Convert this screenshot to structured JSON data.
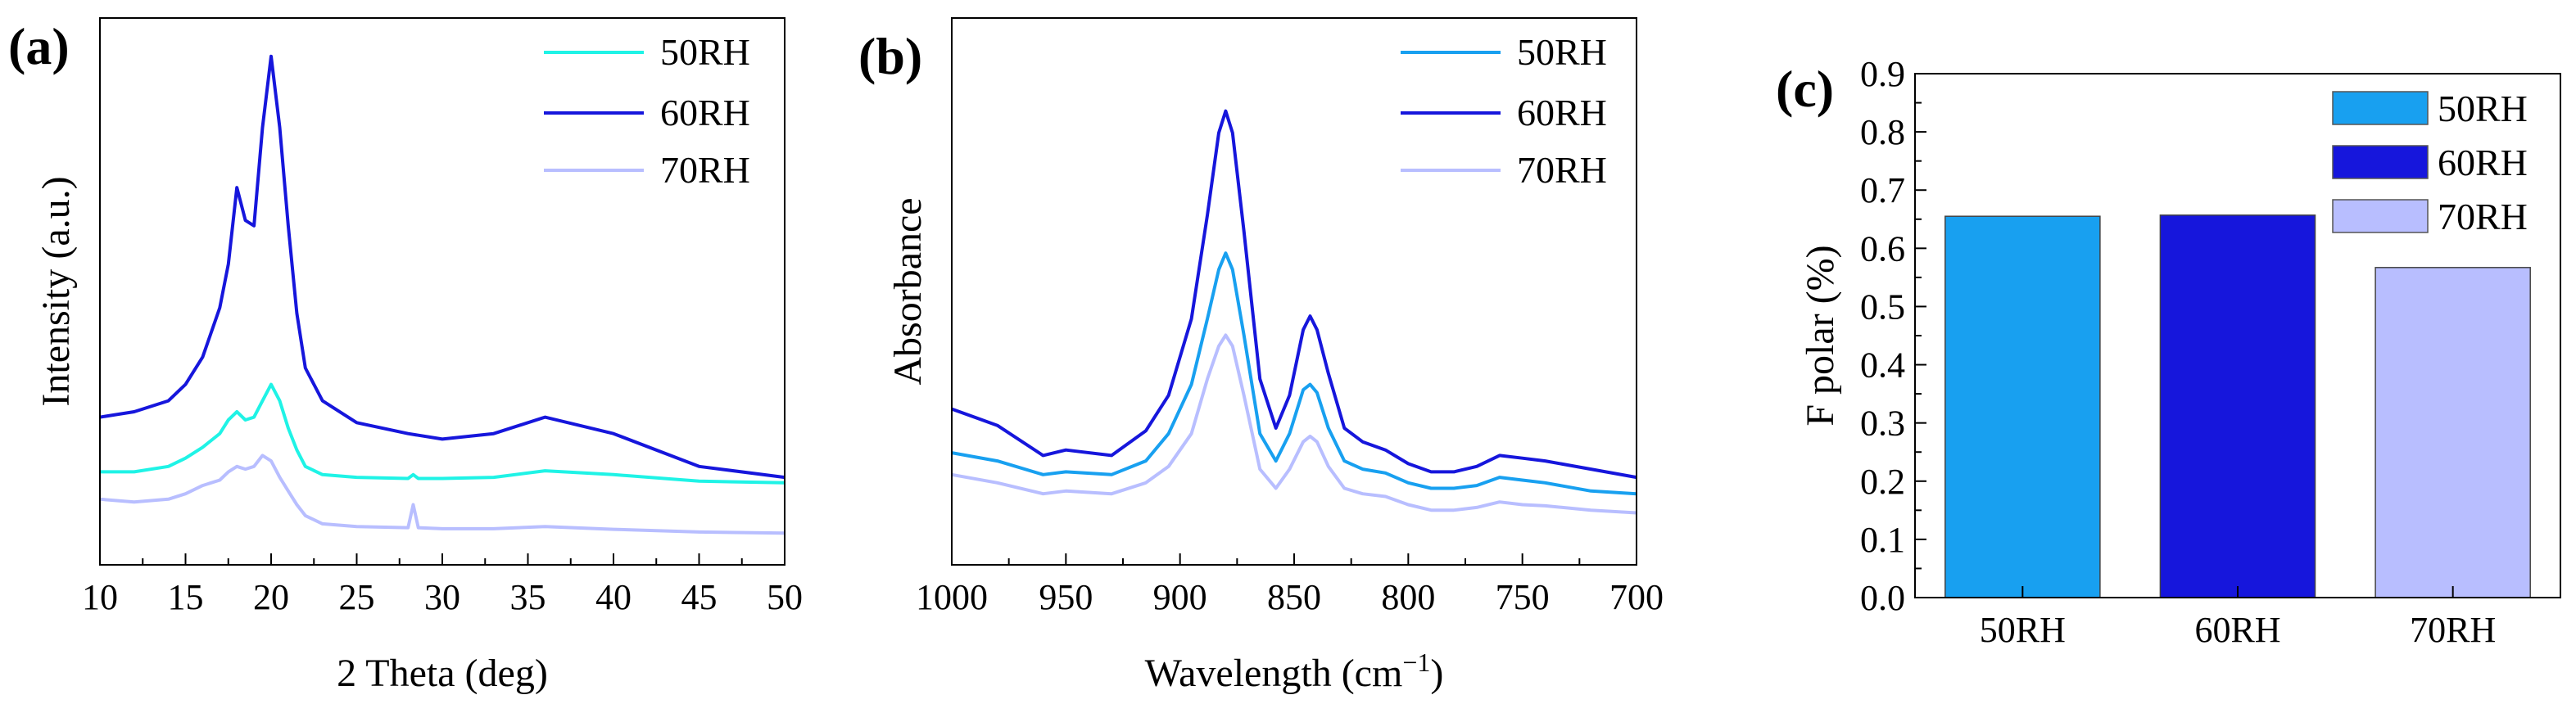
{
  "colors": {
    "rh50_line": "#1ff3e6",
    "rh60": "#1616dc",
    "rh70": "#b8beff",
    "rh50_bar": "#18a0f0",
    "rh50_ftir": "#18a0f0",
    "axis": "#000000"
  },
  "chart_data": [
    {
      "type": "line",
      "panel_label": "(a)",
      "xlabel": "2 Theta (deg)",
      "ylabel": "Intensity (a.u.)",
      "xlim": [
        10,
        50
      ],
      "ylim": [
        0,
        1
      ],
      "xticks": [
        "10",
        "15",
        "20",
        "25",
        "30",
        "35",
        "40",
        "45",
        "50"
      ],
      "legend": [
        "50RH",
        "60RH",
        "70RH"
      ],
      "legend_position": "top-right",
      "series": [
        {
          "name": "50RH",
          "color_key": "rh50_line",
          "x": [
            10,
            12,
            14,
            15,
            16,
            17,
            17.5,
            18,
            18.5,
            19,
            19.5,
            20,
            20.5,
            21,
            21.5,
            22,
            23,
            25,
            28,
            28.3,
            28.6,
            30,
            33,
            36,
            40,
            45,
            50
          ],
          "y": [
            0.17,
            0.17,
            0.18,
            0.195,
            0.215,
            0.24,
            0.265,
            0.28,
            0.265,
            0.27,
            0.3,
            0.33,
            0.3,
            0.25,
            0.21,
            0.18,
            0.165,
            0.16,
            0.158,
            0.165,
            0.158,
            0.158,
            0.16,
            0.172,
            0.165,
            0.153,
            0.15
          ]
        },
        {
          "name": "60RH",
          "color_key": "rh60",
          "x": [
            10,
            12,
            14,
            15,
            16,
            17,
            17.5,
            18,
            18.5,
            19,
            19.5,
            20,
            20.5,
            21,
            21.5,
            22,
            23,
            25,
            28,
            30,
            33,
            36,
            40,
            45,
            50
          ],
          "y": [
            0.27,
            0.28,
            0.3,
            0.33,
            0.38,
            0.47,
            0.55,
            0.69,
            0.63,
            0.62,
            0.8,
            0.93,
            0.8,
            0.62,
            0.46,
            0.36,
            0.3,
            0.26,
            0.24,
            0.23,
            0.24,
            0.27,
            0.24,
            0.18,
            0.16
          ]
        },
        {
          "name": "70RH",
          "color_key": "rh70",
          "x": [
            10,
            12,
            14,
            15,
            16,
            17,
            17.5,
            18,
            18.5,
            19,
            19.5,
            20,
            20.5,
            21,
            21.5,
            22,
            23,
            25,
            28,
            28.3,
            28.6,
            30,
            33,
            36,
            40,
            45,
            50
          ],
          "y": [
            0.12,
            0.115,
            0.12,
            0.13,
            0.145,
            0.155,
            0.17,
            0.18,
            0.175,
            0.18,
            0.2,
            0.19,
            0.16,
            0.135,
            0.11,
            0.09,
            0.075,
            0.07,
            0.068,
            0.11,
            0.068,
            0.066,
            0.066,
            0.07,
            0.065,
            0.06,
            0.058
          ]
        }
      ]
    },
    {
      "type": "line",
      "panel_label": "(b)",
      "xlabel": "Wavelength (cm",
      "xlabel_superscript": "−1",
      "xlabel_close": ")",
      "ylabel": "Absorbance",
      "xlim": [
        1000,
        700
      ],
      "ylim": [
        0,
        1
      ],
      "xticks": [
        "1000",
        "950",
        "900",
        "850",
        "800",
        "750",
        "700"
      ],
      "legend": [
        "50RH",
        "60RH",
        "70RH"
      ],
      "legend_position": "top-right",
      "series": [
        {
          "name": "50RH",
          "color_key": "rh50_ftir",
          "x": [
            1000,
            980,
            960,
            950,
            930,
            915,
            905,
            895,
            888,
            883,
            880,
            877,
            872,
            865,
            858,
            852,
            846,
            843,
            840,
            835,
            828,
            820,
            810,
            800,
            790,
            780,
            770,
            760,
            750,
            740,
            720,
            700
          ],
          "y": [
            0.205,
            0.19,
            0.165,
            0.17,
            0.165,
            0.19,
            0.24,
            0.33,
            0.45,
            0.54,
            0.57,
            0.54,
            0.42,
            0.24,
            0.19,
            0.24,
            0.32,
            0.33,
            0.315,
            0.25,
            0.19,
            0.175,
            0.168,
            0.15,
            0.14,
            0.14,
            0.145,
            0.16,
            0.155,
            0.15,
            0.135,
            0.13
          ]
        },
        {
          "name": "60RH",
          "color_key": "rh60",
          "x": [
            1000,
            980,
            960,
            950,
            930,
            915,
            905,
            895,
            888,
            883,
            880,
            877,
            872,
            865,
            858,
            852,
            846,
            843,
            840,
            835,
            828,
            820,
            810,
            800,
            790,
            780,
            770,
            760,
            750,
            740,
            720,
            700
          ],
          "y": [
            0.285,
            0.255,
            0.2,
            0.21,
            0.2,
            0.245,
            0.31,
            0.45,
            0.64,
            0.79,
            0.83,
            0.79,
            0.61,
            0.34,
            0.25,
            0.31,
            0.43,
            0.455,
            0.43,
            0.35,
            0.25,
            0.225,
            0.21,
            0.185,
            0.17,
            0.17,
            0.18,
            0.2,
            0.195,
            0.19,
            0.175,
            0.16
          ]
        },
        {
          "name": "70RH",
          "color_key": "rh70",
          "x": [
            1000,
            980,
            960,
            950,
            930,
            915,
            905,
            895,
            888,
            883,
            880,
            877,
            872,
            865,
            858,
            852,
            846,
            843,
            840,
            835,
            828,
            820,
            810,
            800,
            790,
            780,
            770,
            760,
            750,
            740,
            720,
            700
          ],
          "y": [
            0.165,
            0.15,
            0.13,
            0.135,
            0.13,
            0.15,
            0.18,
            0.24,
            0.34,
            0.4,
            0.42,
            0.4,
            0.31,
            0.175,
            0.14,
            0.175,
            0.225,
            0.235,
            0.225,
            0.18,
            0.14,
            0.13,
            0.125,
            0.11,
            0.1,
            0.1,
            0.105,
            0.115,
            0.11,
            0.108,
            0.1,
            0.095
          ]
        }
      ]
    },
    {
      "type": "bar",
      "panel_label": "(c)",
      "xlabel": "",
      "ylabel": "F polar (%)",
      "categories": [
        "50RH",
        "60RH",
        "70RH"
      ],
      "values": [
        0.655,
        0.657,
        0.567
      ],
      "color_keys": [
        "rh50_bar",
        "rh60",
        "rh70"
      ],
      "ylim": [
        0,
        0.9
      ],
      "yticks": [
        "0.0",
        "0.1",
        "0.2",
        "0.3",
        "0.4",
        "0.5",
        "0.6",
        "0.7",
        "0.8",
        "0.9"
      ],
      "legend": [
        "50RH",
        "60RH",
        "70RH"
      ],
      "legend_position": "top-right"
    }
  ]
}
